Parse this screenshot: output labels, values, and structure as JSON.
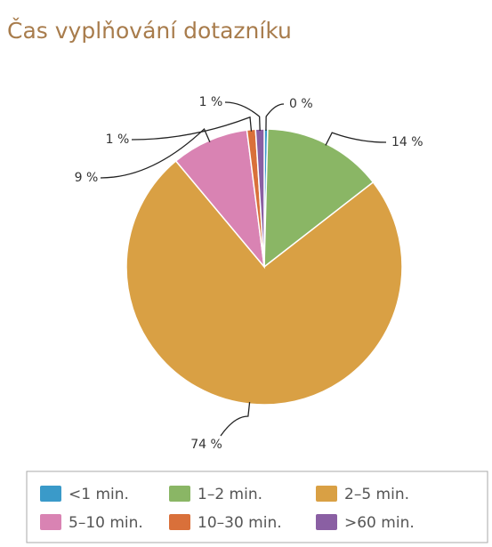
{
  "chart_data": {
    "type": "pie",
    "title": "Čas vyplňování dotazníku",
    "categories": [
      "<1 min.",
      "1–2 min.",
      "2–5 min.",
      "5–10 min.",
      "10–30 min.",
      ">60 min."
    ],
    "values": [
      0.4,
      14,
      74,
      9,
      1,
      1
    ],
    "value_labels": [
      "0 %",
      "14 %",
      "74 %",
      "9 %",
      "1 %",
      "1 %"
    ],
    "colors": [
      "#3a9ac9",
      "#8ab665",
      "#d9a044",
      "#d983b3",
      "#d9703a",
      "#8a5fa3"
    ],
    "legend": "bottom"
  }
}
